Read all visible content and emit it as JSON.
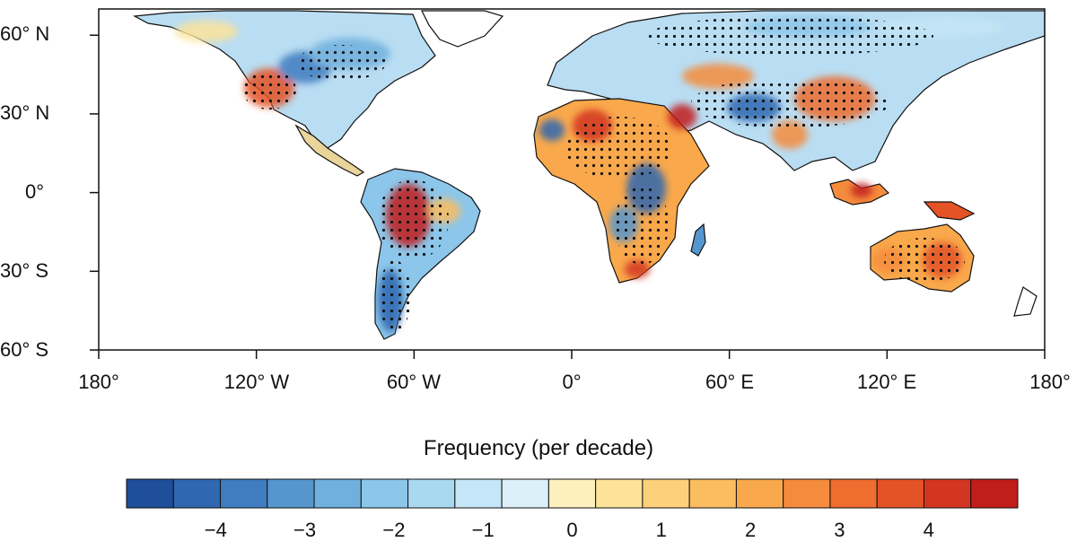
{
  "map": {
    "lat_labels": [
      "60° N",
      "30° N",
      "0°",
      "30° S",
      "60° S"
    ],
    "lon_labels": [
      "180°",
      "120° W",
      "60° W",
      "0°",
      "60° E",
      "120° E",
      "180°"
    ],
    "lat_values": [
      60,
      30,
      0,
      -30,
      -60
    ],
    "lon_values": [
      -180,
      -120,
      -60,
      0,
      60,
      120,
      180
    ],
    "extent": {
      "lon": [
        -180,
        180
      ],
      "lat": [
        -60,
        70
      ]
    },
    "significance_marker": "stipple-dots"
  },
  "legend": {
    "title": "Frequency (per decade)",
    "tick_labels": [
      "−4",
      "−3",
      "−2",
      "−1",
      "0",
      "1",
      "2",
      "3",
      "4"
    ],
    "tick_values": [
      -4,
      -3,
      -2,
      -1,
      0,
      1,
      2,
      3,
      4
    ],
    "range": [
      -5,
      5
    ],
    "step": 0.5,
    "colors": [
      "#1f4e9a",
      "#2f67b1",
      "#3f7dc0",
      "#5596cf",
      "#6fb0de",
      "#8cc6ea",
      "#a9d8f1",
      "#c4e6f6",
      "#dcf0f9",
      "#fdf0bd",
      "#fde39a",
      "#fcd17a",
      "#fbbd5f",
      "#f9a84b",
      "#f58c3d",
      "#ee6d2f",
      "#e35325",
      "#d33520",
      "#c11d1b"
    ]
  }
}
